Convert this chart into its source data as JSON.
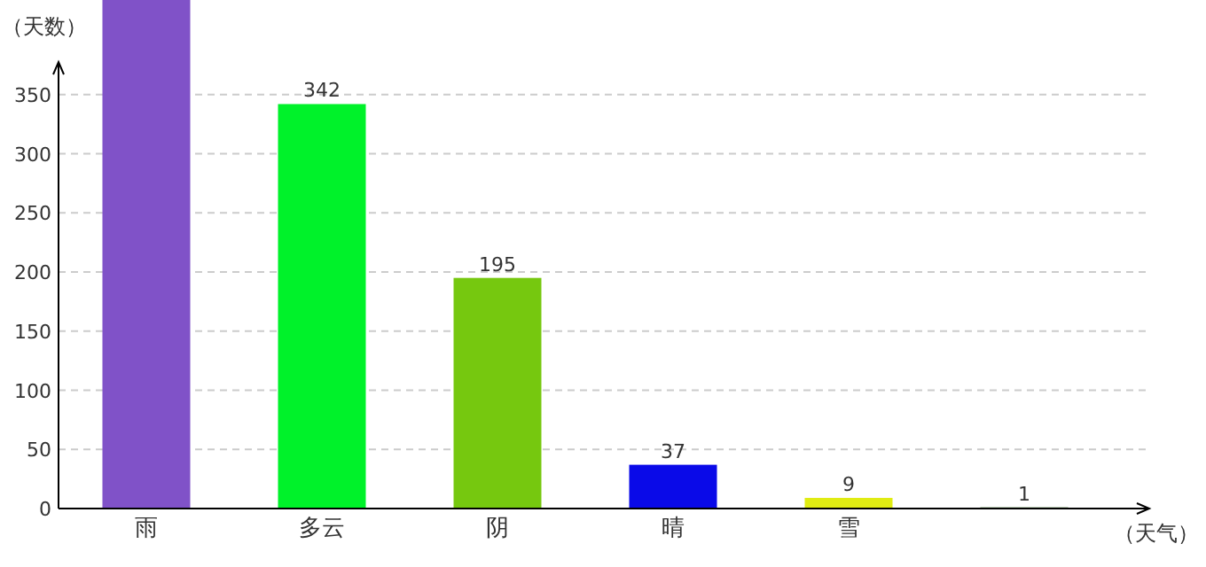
{
  "chart_data": {
    "type": "bar",
    "ylabel": "（天数）",
    "xlabel": "（天气）",
    "categories": [
      "雨",
      "多云",
      "阴",
      "晴",
      "雪",
      null
    ],
    "values": [
      430,
      342,
      195,
      37,
      9,
      1
    ],
    "colors": [
      "#8052c8",
      "#00f22a",
      "#76c80f",
      "#0a0ae8",
      "#e0ec12",
      "#3c6e2c"
    ],
    "value_labels": [
      null,
      "342",
      "195",
      "37",
      "9",
      "1"
    ],
    "ylim": [
      0,
      430
    ],
    "yticks": [
      0,
      50,
      100,
      150,
      200,
      250,
      300,
      350
    ],
    "grid": "y"
  }
}
